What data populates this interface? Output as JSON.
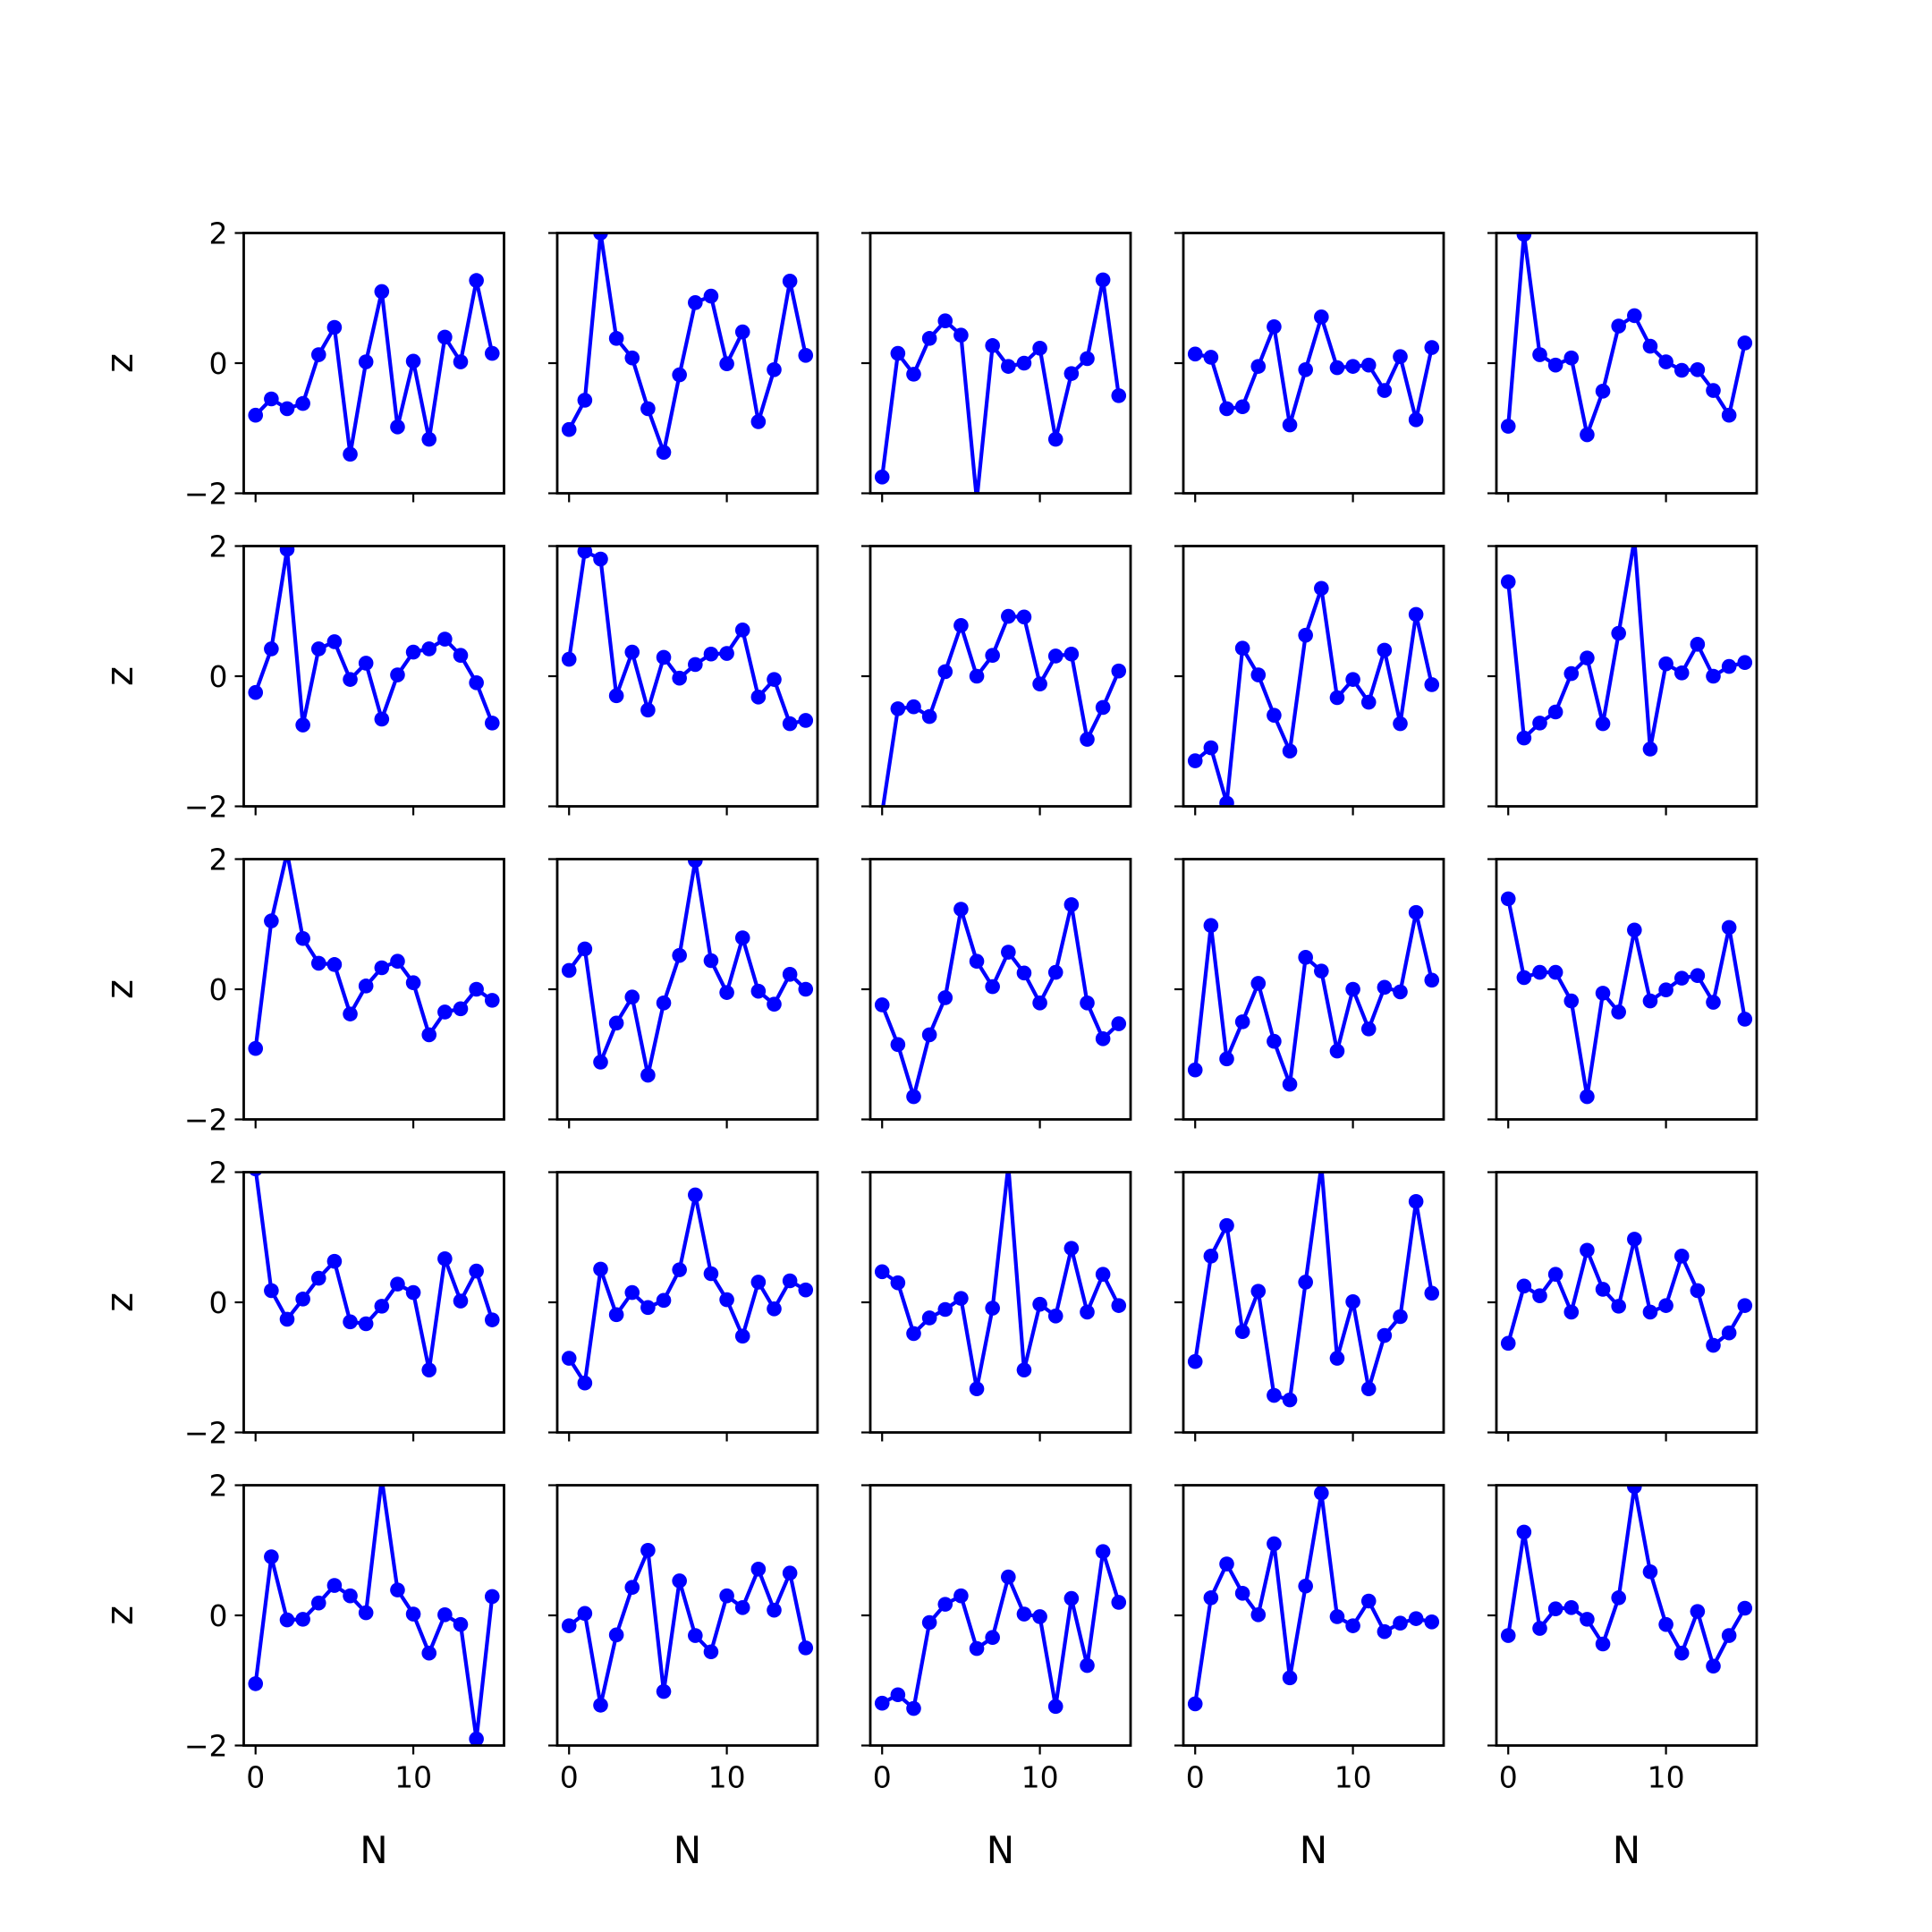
{
  "chart_data": {
    "type": "line",
    "layout": {
      "rows": 5,
      "cols": 5,
      "sharex": true,
      "sharey": true
    },
    "xlabel": "N",
    "ylabel": "z",
    "xlim": [
      -0.75,
      15.75
    ],
    "ylim": [
      -2,
      2
    ],
    "xticks": [
      0,
      10
    ],
    "xtick_labels": [
      "0",
      "10"
    ],
    "yticks": [
      -2,
      0,
      2
    ],
    "ytick_labels": [
      "−2",
      "0",
      "2"
    ],
    "x": [
      0,
      1,
      2,
      3,
      4,
      5,
      6,
      7,
      8,
      9,
      10,
      11,
      12,
      13,
      14,
      15
    ],
    "line_color": "#0000ff",
    "marker": "circle",
    "series": [
      {
        "values": [
          -0.8,
          -0.55,
          -0.7,
          -0.62,
          0.13,
          0.55,
          -1.4,
          0.02,
          1.1,
          -0.98,
          0.03,
          -1.17,
          0.4,
          0.02,
          1.27,
          0.15
        ]
      },
      {
        "values": [
          -1.02,
          -0.57,
          2.0,
          0.38,
          0.08,
          -0.7,
          -1.37,
          -0.18,
          0.93,
          1.03,
          -0.01,
          0.48,
          -0.9,
          -0.1,
          1.26,
          0.12
        ]
      },
      {
        "values": [
          -1.75,
          0.15,
          -0.17,
          0.38,
          0.65,
          0.43,
          -2.1,
          0.27,
          -0.05,
          0.0,
          0.23,
          -1.17,
          -0.16,
          0.07,
          1.28,
          -0.5
        ]
      },
      {
        "values": [
          0.14,
          0.09,
          -0.7,
          -0.67,
          -0.05,
          0.56,
          -0.95,
          -0.1,
          0.71,
          -0.07,
          -0.05,
          -0.03,
          -0.42,
          0.1,
          -0.87,
          0.24
        ]
      },
      {
        "values": [
          -0.97,
          1.98,
          0.13,
          -0.03,
          0.08,
          -1.1,
          -0.43,
          0.57,
          0.73,
          0.26,
          0.02,
          -0.11,
          -0.1,
          -0.42,
          -0.8,
          0.31
        ]
      },
      {
        "values": [
          -0.25,
          0.42,
          1.95,
          -0.75,
          0.42,
          0.53,
          -0.05,
          0.2,
          -0.66,
          0.02,
          0.37,
          0.42,
          0.57,
          0.32,
          -0.1,
          -0.72
        ]
      },
      {
        "values": [
          0.26,
          1.92,
          1.8,
          -0.3,
          0.37,
          -0.52,
          0.29,
          -0.03,
          0.18,
          0.34,
          0.35,
          0.71,
          -0.32,
          -0.05,
          -0.73,
          -0.68
        ]
      },
      {
        "values": [
          -2.1,
          -0.5,
          -0.47,
          -0.62,
          0.07,
          0.78,
          0.0,
          0.32,
          0.92,
          0.91,
          -0.12,
          0.31,
          0.34,
          -0.97,
          -0.48,
          0.08
        ]
      },
      {
        "values": [
          -1.3,
          -1.1,
          -1.95,
          0.43,
          0.02,
          -0.6,
          -1.15,
          0.63,
          1.35,
          -0.33,
          -0.05,
          -0.4,
          0.4,
          -0.73,
          0.95,
          -0.13
        ]
      },
      {
        "values": [
          1.45,
          -0.95,
          -0.72,
          -0.55,
          0.04,
          0.28,
          -0.73,
          0.66,
          2.1,
          -1.12,
          0.19,
          0.05,
          0.49,
          0.0,
          0.15,
          0.21
        ]
      },
      {
        "values": [
          -0.91,
          1.05,
          2.1,
          0.78,
          0.4,
          0.38,
          -0.38,
          0.05,
          0.33,
          0.43,
          0.1,
          -0.7,
          -0.35,
          -0.3,
          0.0,
          -0.17
        ]
      },
      {
        "values": [
          0.29,
          0.62,
          -1.12,
          -0.52,
          -0.12,
          -1.32,
          -0.21,
          0.52,
          1.98,
          0.44,
          -0.05,
          0.79,
          -0.03,
          -0.23,
          0.23,
          0.0
        ]
      },
      {
        "values": [
          -0.24,
          -0.85,
          -1.65,
          -0.7,
          -0.13,
          1.23,
          0.43,
          0.04,
          0.57,
          0.25,
          -0.21,
          0.26,
          1.3,
          -0.21,
          -0.76,
          -0.53
        ]
      },
      {
        "values": [
          -1.24,
          0.98,
          -1.07,
          -0.5,
          0.09,
          -0.8,
          -1.46,
          0.49,
          0.28,
          -0.95,
          0.0,
          -0.61,
          0.03,
          -0.04,
          1.18,
          0.14
        ]
      },
      {
        "values": [
          1.39,
          0.18,
          0.26,
          0.26,
          -0.18,
          -1.65,
          -0.06,
          -0.35,
          0.91,
          -0.18,
          -0.01,
          0.17,
          0.21,
          -0.2,
          0.95,
          -0.46
        ]
      },
      {
        "values": [
          2.05,
          0.18,
          -0.26,
          0.05,
          0.37,
          0.63,
          -0.3,
          -0.33,
          -0.06,
          0.28,
          0.15,
          -1.04,
          0.67,
          0.02,
          0.48,
          -0.27
        ]
      },
      {
        "values": [
          -0.86,
          -1.24,
          0.51,
          -0.19,
          0.15,
          -0.08,
          0.03,
          0.5,
          1.65,
          0.44,
          0.04,
          -0.52,
          0.31,
          -0.1,
          0.33,
          0.19
        ]
      },
      {
        "values": [
          0.47,
          0.3,
          -0.48,
          -0.24,
          -0.11,
          0.06,
          -1.33,
          -0.09,
          2.1,
          -1.04,
          -0.03,
          -0.21,
          0.83,
          -0.15,
          0.43,
          -0.05
        ]
      },
      {
        "values": [
          -0.91,
          0.71,
          1.18,
          -0.45,
          0.17,
          -1.43,
          -1.5,
          0.31,
          2.1,
          -0.86,
          0.01,
          -1.33,
          -0.51,
          -0.22,
          1.55,
          0.14
        ]
      },
      {
        "values": [
          -0.63,
          0.25,
          0.1,
          0.43,
          -0.15,
          0.8,
          0.2,
          -0.06,
          0.97,
          -0.15,
          -0.05,
          0.71,
          0.18,
          -0.66,
          -0.47,
          -0.05
        ]
      },
      {
        "values": [
          -1.05,
          0.9,
          -0.07,
          -0.06,
          0.19,
          0.46,
          0.3,
          0.04,
          2.1,
          0.39,
          0.02,
          -0.58,
          0.01,
          -0.14,
          -1.9,
          0.29
        ]
      },
      {
        "values": [
          -0.16,
          0.03,
          -1.38,
          -0.3,
          0.43,
          1.0,
          -1.17,
          0.53,
          -0.31,
          -0.56,
          0.3,
          0.12,
          0.71,
          0.08,
          0.65,
          -0.5
        ]
      },
      {
        "values": [
          -1.35,
          -1.22,
          -1.43,
          -0.11,
          0.17,
          0.3,
          -0.51,
          -0.34,
          0.59,
          0.02,
          -0.02,
          -1.4,
          0.26,
          -0.77,
          0.98,
          0.2
        ]
      },
      {
        "values": [
          -1.36,
          0.27,
          0.79,
          0.34,
          0.01,
          1.1,
          -0.96,
          0.45,
          1.88,
          -0.02,
          -0.16,
          0.22,
          -0.25,
          -0.12,
          -0.05,
          -0.1
        ]
      },
      {
        "values": [
          -0.31,
          1.28,
          -0.2,
          0.1,
          0.12,
          -0.06,
          -0.44,
          0.27,
          1.98,
          0.67,
          -0.14,
          -0.58,
          0.06,
          -0.78,
          -0.31,
          0.11
        ]
      }
    ]
  }
}
